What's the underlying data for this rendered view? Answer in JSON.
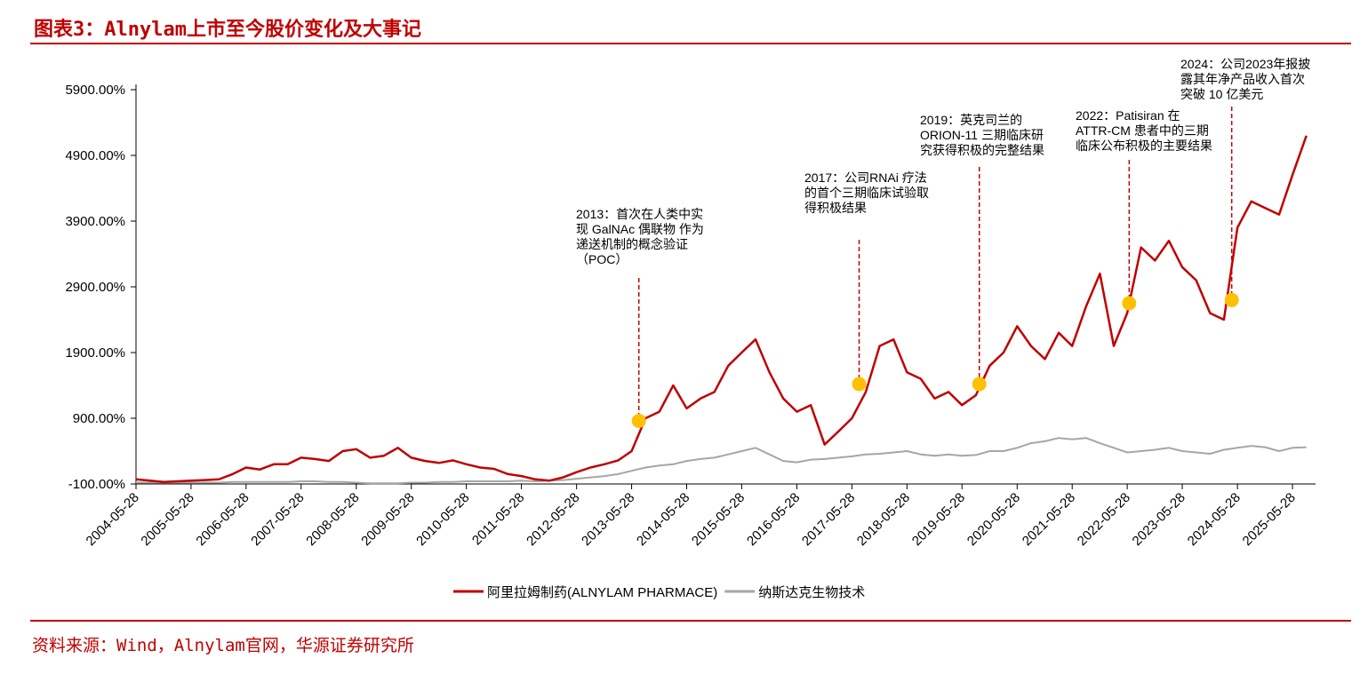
{
  "header": {
    "title": "图表3：Alnylam上市至今股价变化及大事记"
  },
  "chart_data": {
    "type": "line",
    "x": [
      "2004-05-28",
      "2004-08-28",
      "2004-11-28",
      "2005-02-28",
      "2005-05-28",
      "2005-08-28",
      "2005-11-28",
      "2006-02-28",
      "2006-05-28",
      "2006-08-28",
      "2006-11-28",
      "2007-02-28",
      "2007-05-28",
      "2007-08-28",
      "2007-11-28",
      "2008-02-28",
      "2008-05-28",
      "2008-08-28",
      "2008-11-28",
      "2009-02-28",
      "2009-05-28",
      "2009-08-28",
      "2009-11-28",
      "2010-02-28",
      "2010-05-28",
      "2010-08-28",
      "2010-11-28",
      "2011-02-28",
      "2011-05-28",
      "2011-08-28",
      "2011-11-28",
      "2012-02-28",
      "2012-05-28",
      "2012-08-28",
      "2012-11-28",
      "2013-02-28",
      "2013-05-28",
      "2013-08-28",
      "2013-11-28",
      "2014-02-28",
      "2014-05-28",
      "2014-08-28",
      "2014-11-28",
      "2015-02-28",
      "2015-05-28",
      "2015-08-28",
      "2015-11-28",
      "2016-02-28",
      "2016-05-28",
      "2016-08-28",
      "2016-11-28",
      "2017-02-28",
      "2017-05-28",
      "2017-08-28",
      "2017-11-28",
      "2018-02-28",
      "2018-05-28",
      "2018-08-28",
      "2018-11-28",
      "2019-02-28",
      "2019-05-28",
      "2019-08-28",
      "2019-11-28",
      "2020-02-28",
      "2020-05-28",
      "2020-08-28",
      "2020-11-28",
      "2021-02-28",
      "2021-05-28",
      "2021-08-28",
      "2021-11-28",
      "2022-02-28",
      "2022-05-28",
      "2022-08-28",
      "2022-11-28",
      "2023-02-28",
      "2023-05-28",
      "2023-08-28",
      "2023-11-28",
      "2024-02-28",
      "2024-05-28",
      "2024-08-28",
      "2024-11-28",
      "2025-02-28",
      "2025-05-28",
      "2025-08-28"
    ],
    "series": [
      {
        "name": "阿里拉姆制药(ALNYLAM PHARMACE)",
        "color": "#c00000",
        "values": [
          -30,
          -50,
          -70,
          -60,
          -50,
          -40,
          -30,
          50,
          150,
          120,
          200,
          200,
          300,
          280,
          250,
          400,
          430,
          300,
          330,
          450,
          300,
          250,
          220,
          260,
          200,
          150,
          130,
          50,
          20,
          -30,
          -50,
          0,
          80,
          150,
          200,
          260,
          400,
          900,
          1000,
          1400,
          1050,
          1200,
          1300,
          1700,
          1900,
          2100,
          1600,
          1200,
          1000,
          1100,
          500,
          700,
          900,
          1300,
          2000,
          2100,
          1600,
          1500,
          1200,
          1300,
          1100,
          1250,
          1700,
          1900,
          2300,
          2000,
          1800,
          2200,
          2000,
          2600,
          3100,
          2000,
          2500,
          3500,
          3300,
          3600,
          3200,
          3000,
          2500,
          2400,
          3800,
          4200,
          4100,
          4000,
          4600,
          5200
        ]
      },
      {
        "name": "纳斯达克生物技术",
        "color": "#a6a6a6",
        "values": [
          -80,
          -80,
          -80,
          -80,
          -80,
          -80,
          -80,
          -70,
          -70,
          -70,
          -70,
          -70,
          -60,
          -60,
          -70,
          -70,
          -80,
          -90,
          -90,
          -90,
          -80,
          -80,
          -70,
          -70,
          -60,
          -60,
          -60,
          -60,
          -50,
          -60,
          -50,
          -40,
          -20,
          0,
          20,
          50,
          100,
          150,
          180,
          200,
          250,
          280,
          300,
          350,
          400,
          450,
          350,
          250,
          230,
          270,
          280,
          300,
          320,
          350,
          360,
          380,
          400,
          350,
          330,
          350,
          330,
          340,
          400,
          400,
          450,
          520,
          550,
          600,
          580,
          600,
          520,
          450,
          380,
          400,
          420,
          450,
          400,
          380,
          360,
          420,
          450,
          480,
          460,
          400,
          450,
          460
        ]
      }
    ],
    "xlim": [
      "2004-05-28",
      "2025-10-28"
    ],
    "xticks": [
      "2004-05-28",
      "2005-05-28",
      "2006-05-28",
      "2007-05-28",
      "2008-05-28",
      "2009-05-28",
      "2010-05-28",
      "2011-05-28",
      "2012-05-28",
      "2013-05-28",
      "2014-05-28",
      "2015-05-28",
      "2016-05-28",
      "2017-05-28",
      "2018-05-28",
      "2019-05-28",
      "2020-05-28",
      "2021-05-28",
      "2022-05-28",
      "2023-05-28",
      "2024-05-28",
      "2025-05-28"
    ],
    "ylim": [
      -100,
      5900
    ],
    "yticks": [
      {
        "value": -100,
        "label": "-100.00%"
      },
      {
        "value": 900,
        "label": "900.00%"
      },
      {
        "value": 1900,
        "label": "1900.00%"
      },
      {
        "value": 2900,
        "label": "2900.00%"
      },
      {
        "value": 3900,
        "label": "3900.00%"
      },
      {
        "value": 4900,
        "label": "4900.00%"
      },
      {
        "value": 5900,
        "label": "5900.00%"
      }
    ],
    "annotations": [
      {
        "x": "2013-07-15",
        "y": 860,
        "color": "#ffc000",
        "lines": [
          "2013：首次在人类中实",
          "现 GalNAc 偶联物 作为",
          "递送机制的概念验证",
          "（POC）"
        ]
      },
      {
        "x": "2017-07-15",
        "y": 1420,
        "color": "#ffc000",
        "lines": [
          "2017：公司RNAi 疗法",
          "的首个三期临床试验取",
          "得积极结果"
        ]
      },
      {
        "x": "2019-09-20",
        "y": 1420,
        "color": "#ffc000",
        "lines": [
          "2019：英克司兰的",
          "ORION-11 三期临床研",
          "究获得积极的完整结果"
        ]
      },
      {
        "x": "2022-06-10",
        "y": 2650,
        "color": "#ffc000",
        "lines": [
          "2022：Patisiran 在",
          "ATTR-CM 患者中的三期",
          "临床公布积极的主要结果"
        ]
      },
      {
        "x": "2024-04-20",
        "y": 2700,
        "color": "#ffc000",
        "lines": [
          "2024：公司2023年报披",
          "露其年净产品收入首次",
          "突破 10 亿美元"
        ]
      }
    ]
  },
  "footer": {
    "source": "资料来源：Wind，Alnylam官网，华源证券研究所"
  }
}
